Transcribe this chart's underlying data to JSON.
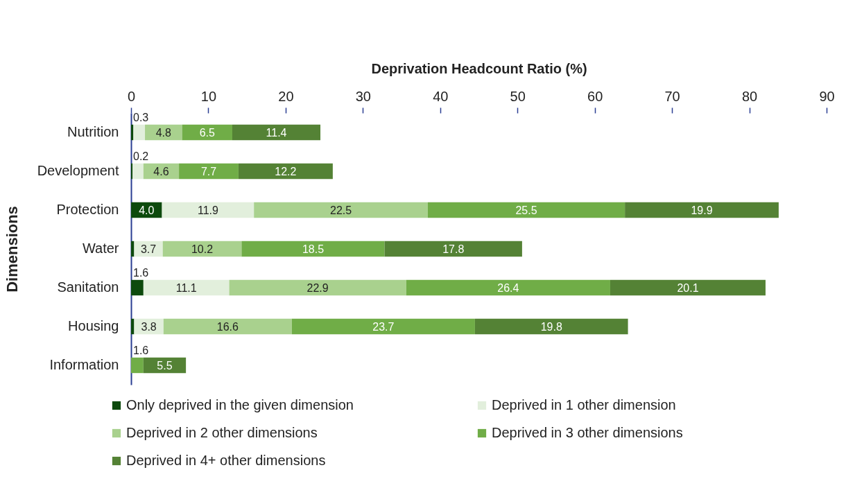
{
  "chart_data": {
    "type": "bar",
    "orientation": "horizontal",
    "stacked": true,
    "xlabel": "Deprivation Headcount Ratio (%)",
    "ylabel": "Dimensions",
    "categories": [
      "Nutrition",
      "Development",
      "Protection",
      "Water",
      "Sanitation",
      "Housing",
      "Information"
    ],
    "series": [
      {
        "name": "Only deprived in the given dimension",
        "color": "#0d4a0d",
        "values": [
          0.3,
          0.2,
          4.0,
          0.4,
          1.6,
          0.4,
          null
        ],
        "value_labels": [
          "0.3",
          "0.2",
          "4.0",
          null,
          "1.6",
          null,
          null
        ]
      },
      {
        "name": "Deprived in 1 other dimension",
        "color": "#e2efdc",
        "values": [
          1.5,
          1.4,
          11.9,
          3.7,
          11.1,
          3.8,
          null
        ],
        "value_labels": [
          null,
          null,
          "11.9",
          "3.7",
          "11.1",
          "3.8",
          null
        ]
      },
      {
        "name": "Deprived in 2 other dimensions",
        "color": "#a9d18e",
        "values": [
          4.8,
          4.6,
          22.5,
          10.2,
          22.9,
          16.6,
          null
        ],
        "value_labels": [
          "4.8",
          "4.6",
          "22.5",
          "10.2",
          "22.9",
          "16.6",
          null
        ]
      },
      {
        "name": "Deprived in 3 other dimensions",
        "color": "#70ad47",
        "values": [
          6.5,
          7.7,
          25.5,
          18.5,
          26.4,
          23.7,
          1.6
        ],
        "value_labels": [
          "6.5",
          "7.7",
          "25.5",
          "18.5",
          "26.4",
          "23.7",
          "1.6"
        ]
      },
      {
        "name": "Deprived in 4+ other dimensions",
        "color": "#548235",
        "values": [
          11.4,
          12.2,
          19.9,
          17.8,
          20.1,
          19.8,
          5.5
        ],
        "value_labels": [
          "11.4",
          "12.2",
          "19.9",
          "17.8",
          "20.1",
          "19.8",
          "5.5"
        ]
      }
    ],
    "xlim": [
      0,
      90
    ],
    "xticks": [
      0,
      10,
      20,
      30,
      40,
      50,
      60,
      70,
      80,
      90
    ],
    "legend": "bottom",
    "grid": false
  }
}
